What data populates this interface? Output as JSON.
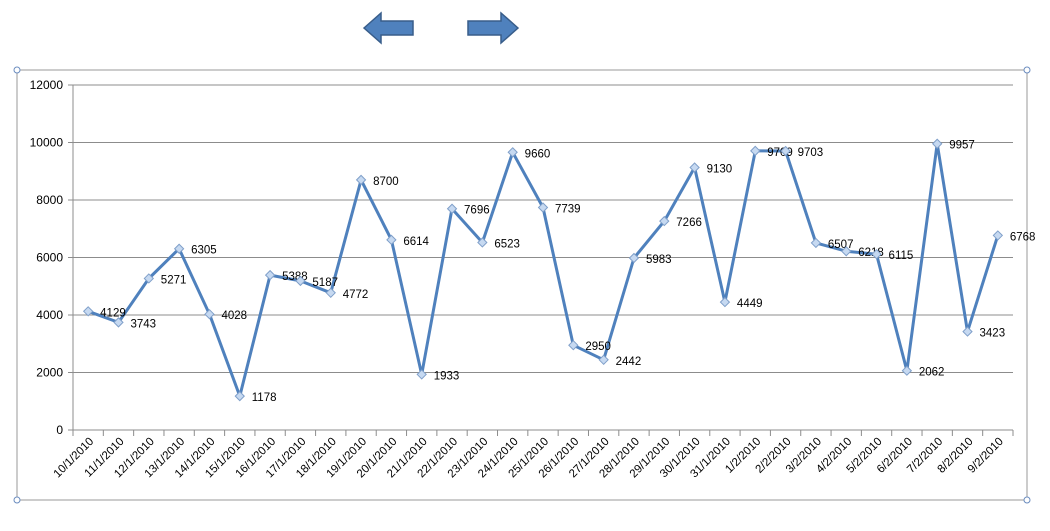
{
  "navigation": {
    "back_icon": "arrow-left-icon",
    "forward_icon": "arrow-right-icon",
    "arrow_color": "#4F81BD",
    "arrow_border_color": "#385D8A"
  },
  "chart_data": {
    "type": "line",
    "title": "",
    "xlabel": "",
    "ylabel": "",
    "ylim": [
      0,
      12000
    ],
    "yticks": [
      0,
      2000,
      4000,
      6000,
      8000,
      10000,
      12000
    ],
    "grid": true,
    "legend": "none",
    "line_color": "#4F81BD",
    "marker_fill": "#C6D9F1",
    "categories": [
      "10/1/2010",
      "11/1/2010",
      "12/1/2010",
      "13/1/2010",
      "14/1/2010",
      "15/1/2010",
      "16/1/2010",
      "17/1/2010",
      "18/1/2010",
      "19/1/2010",
      "20/1/2010",
      "21/1/2010",
      "22/1/2010",
      "23/1/2010",
      "24/1/2010",
      "25/1/2010",
      "26/1/2010",
      "27/1/2010",
      "28/1/2010",
      "29/1/2010",
      "30/1/2010",
      "31/1/2010",
      "1/2/2010",
      "2/2/2010",
      "3/2/2010",
      "4/2/2010",
      "5/2/2010",
      "6/2/2010",
      "7/2/2010",
      "8/2/2010",
      "9/2/2010"
    ],
    "series": [
      {
        "values": [
          4129,
          3743,
          5271,
          6305,
          4028,
          1178,
          5388,
          5187,
          4772,
          8700,
          6614,
          1933,
          7696,
          6523,
          9660,
          7739,
          2950,
          2442,
          5983,
          7266,
          9130,
          4449,
          9709,
          9703,
          6507,
          6218,
          6115,
          2062,
          9957,
          3423,
          6768
        ]
      }
    ]
  }
}
